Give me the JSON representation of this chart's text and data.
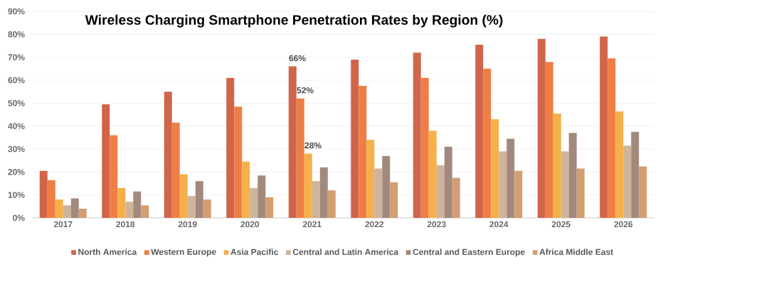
{
  "chart_data": {
    "type": "bar",
    "title": "Wireless Charging Smartphone Penetration Rates by Region (%)",
    "categories": [
      "2017",
      "2018",
      "2019",
      "2020",
      "2021",
      "2022",
      "2023",
      "2024",
      "2025",
      "2026"
    ],
    "series": [
      {
        "name": "North America",
        "color": "#d0654a",
        "values": [
          20.5,
          49.5,
          55,
          61,
          66,
          69,
          72,
          75.5,
          78,
          79
        ],
        "value_labels": [
          null,
          null,
          null,
          null,
          "66%",
          null,
          null,
          null,
          null,
          null
        ]
      },
      {
        "name": "Western Europe",
        "color": "#ef7e45",
        "values": [
          16.5,
          36,
          41.5,
          48.5,
          52,
          57.5,
          61,
          65,
          68,
          69.5
        ],
        "value_labels": [
          null,
          null,
          null,
          null,
          "52%",
          null,
          null,
          null,
          null,
          null
        ]
      },
      {
        "name": "Asia Pacific",
        "color": "#f5b04a",
        "values": [
          8,
          13,
          19,
          24.5,
          28,
          34,
          38,
          43,
          45.5,
          46.5
        ],
        "value_labels": [
          null,
          null,
          null,
          null,
          "28%",
          null,
          null,
          null,
          null,
          null
        ]
      },
      {
        "name": "Central and Latin America",
        "color": "#cdb49a",
        "values": [
          5.5,
          7,
          9.5,
          13,
          16,
          21.5,
          23,
          29,
          29,
          31.5
        ]
      },
      {
        "name": "Central and Eastern Europe",
        "color": "#a3897d",
        "values": [
          8.5,
          11.5,
          16,
          18.5,
          22,
          27,
          31,
          34.5,
          37,
          37.5
        ]
      },
      {
        "name": "Africa Middle East",
        "color": "#d29e72",
        "values": [
          4,
          5.5,
          8,
          9,
          12,
          15.5,
          17.5,
          20.5,
          21.5,
          22.5
        ]
      }
    ],
    "ylim": [
      0,
      90
    ],
    "yticks": [
      {
        "value": 0,
        "label": "0%"
      },
      {
        "value": 10,
        "label": "10%"
      },
      {
        "value": 20,
        "label": "20%"
      },
      {
        "value": 30,
        "label": "30%"
      },
      {
        "value": 40,
        "label": "40%"
      },
      {
        "value": 50,
        "label": "50%"
      },
      {
        "value": 60,
        "label": "60%"
      },
      {
        "value": 70,
        "label": "70%"
      },
      {
        "value": 80,
        "label": "80%"
      },
      {
        "value": 90,
        "label": "90%"
      }
    ],
    "grid": "y",
    "legend": "bottom"
  }
}
